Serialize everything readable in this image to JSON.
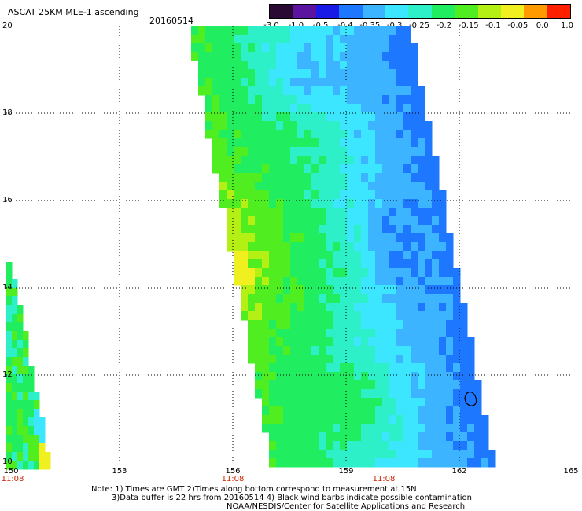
{
  "header": {
    "title": "ASCAT 25KM MLE-1 ascending",
    "date": "20160514"
  },
  "colorbar": {
    "labels": [
      "-3.0",
      "-1.0",
      "-0.5",
      "-0.4",
      "-0.35",
      "-0.3",
      "-0.25",
      "-0.2",
      "-0.15",
      "-0.1",
      "-0.05",
      "0.0",
      "1.0"
    ],
    "colors": [
      "#2a0a33",
      "#5a14a0",
      "#1a1ae6",
      "#1e78ff",
      "#3cb4ff",
      "#3ce6ff",
      "#2ef0c8",
      "#20ee60",
      "#50ee20",
      "#b4f014",
      "#f0f020",
      "#ff9a00",
      "#ff2000"
    ]
  },
  "axes": {
    "y_ticks": [
      "20",
      "18",
      "16",
      "14",
      "12",
      "10"
    ],
    "x_ticks": [
      "150",
      "153",
      "156",
      "159",
      "162",
      "165"
    ],
    "time_labels": [
      {
        "lon": "150",
        "text": "11:08"
      },
      {
        "lon": "156",
        "text": "11:08"
      },
      {
        "lon": "160",
        "text": "11:08"
      }
    ]
  },
  "footer": {
    "line1": "Note: 1) Times are GMT 2)Times along bottom correspond to measurement at 15N",
    "line2": "3)Data buffer is 22 hrs from 20160514 4) Black wind barbs indicate possible contamination",
    "line3": "NOAA/NESDIS/Center for Satellite Applications and Research"
  }
}
